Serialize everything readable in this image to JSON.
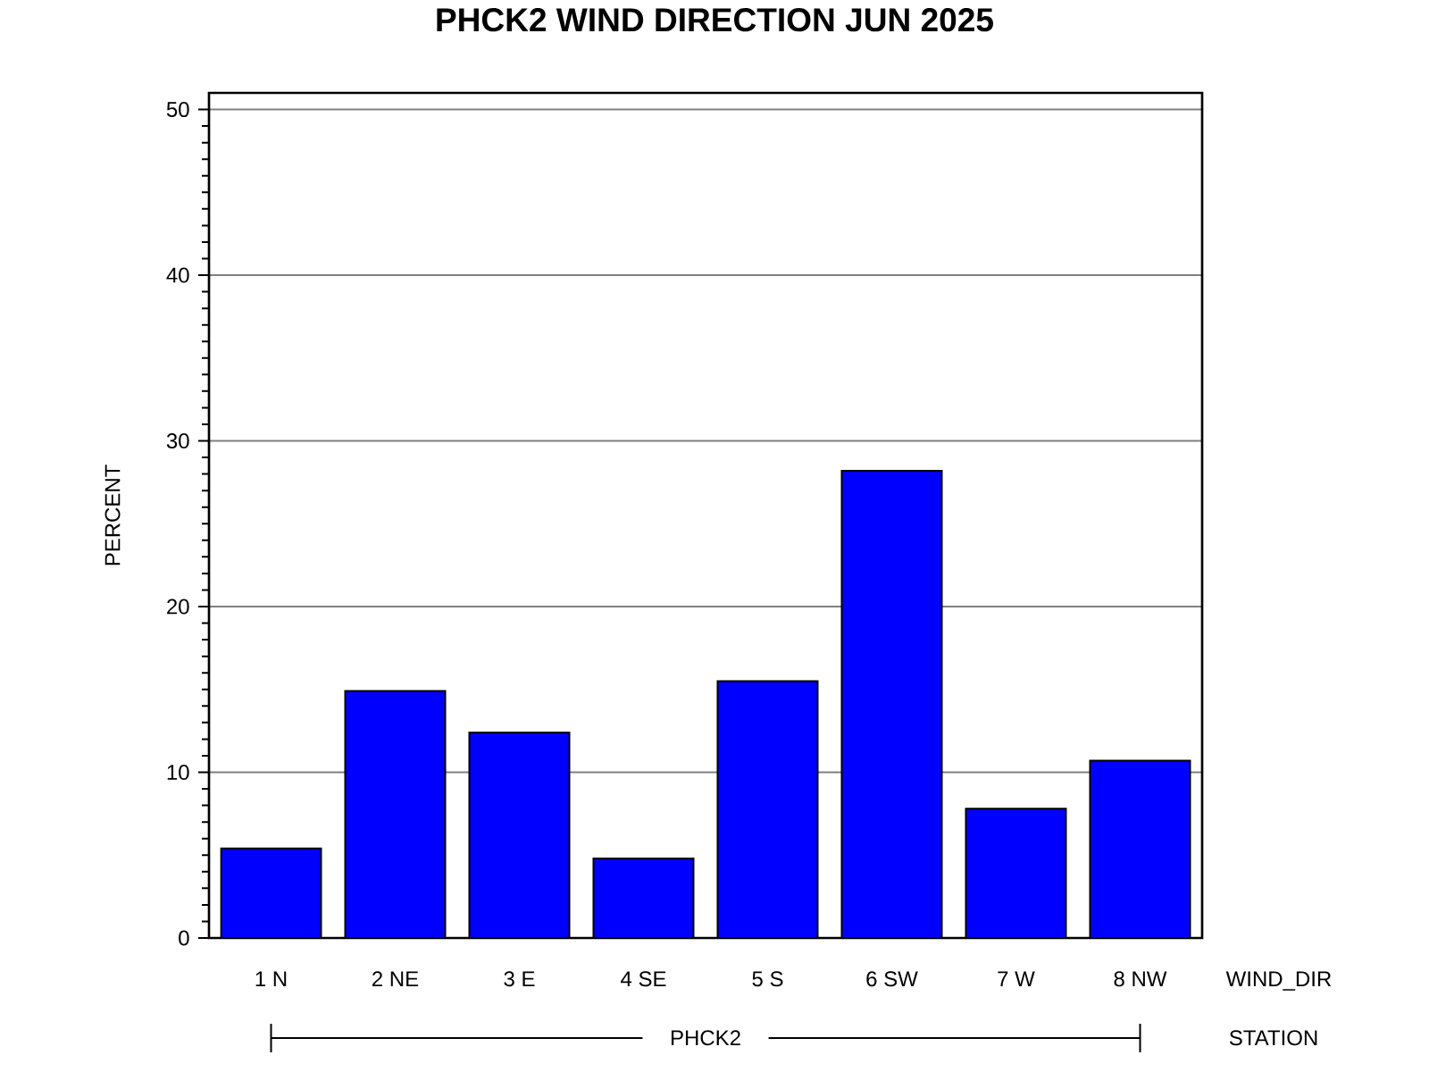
{
  "chart_data": {
    "type": "bar",
    "title": "PHCK2 WIND DIRECTION JUN 2025",
    "xlabel": "WIND_DIR",
    "ylabel": "PERCENT",
    "categories": [
      "1 N",
      "2 NE",
      "3 E",
      "4 SE",
      "5 S",
      "6 SW",
      "7 W",
      "8 NW"
    ],
    "values": [
      5.4,
      14.9,
      12.4,
      4.8,
      15.5,
      28.2,
      7.8,
      10.7
    ],
    "color": "#0000ff",
    "ylim": [
      0,
      51
    ],
    "yticks": [
      0,
      {
        "value": 1,
        "label": null
      },
      {
        "value": 2,
        "label": null
      },
      {
        "value": 3,
        "label": null
      },
      {
        "value": 4,
        "label": null
      },
      {
        "value": 5,
        "label": null
      },
      {
        "value": 6,
        "label": null
      },
      {
        "value": 7,
        "label": null
      },
      {
        "value": 8,
        "label": null
      },
      {
        "value": 9,
        "label": null
      },
      10,
      {
        "value": 11,
        "label": null
      },
      {
        "value": 12,
        "label": null
      },
      {
        "value": 13,
        "label": null
      },
      {
        "value": 14,
        "label": null
      },
      {
        "value": 15,
        "label": null
      },
      {
        "value": 16,
        "label": null
      },
      {
        "value": 17,
        "label": null
      },
      {
        "value": 18,
        "label": null
      },
      {
        "value": 19,
        "label": null
      },
      20,
      {
        "value": 21,
        "label": null
      },
      {
        "value": 22,
        "label": null
      },
      {
        "value": 23,
        "label": null
      },
      {
        "value": 24,
        "label": null
      },
      {
        "value": 25,
        "label": null
      },
      {
        "value": 26,
        "label": null
      },
      {
        "value": 27,
        "label": null
      },
      {
        "value": 28,
        "label": null
      },
      {
        "value": 29,
        "label": null
      },
      30,
      {
        "value": 31,
        "label": null
      },
      {
        "value": 32,
        "label": null
      },
      {
        "value": 33,
        "label": null
      },
      {
        "value": 34,
        "label": null
      },
      {
        "value": 35,
        "label": null
      },
      {
        "value": 36,
        "label": null
      },
      {
        "value": 37,
        "label": null
      },
      {
        "value": 38,
        "label": null
      },
      {
        "value": 39,
        "label": null
      },
      40,
      {
        "value": 41,
        "label": null
      },
      {
        "value": 42,
        "label": null
      },
      {
        "value": 43,
        "label": null
      },
      {
        "value": 44,
        "label": null
      },
      {
        "value": 45,
        "label": null
      },
      {
        "value": 46,
        "label": null
      },
      {
        "value": 47,
        "label": null
      },
      {
        "value": 48,
        "label": null
      },
      {
        "value": 49,
        "label": null
      },
      50
    ],
    "grid": "y",
    "annotations": [
      "PHCK2",
      "STATION"
    ]
  }
}
